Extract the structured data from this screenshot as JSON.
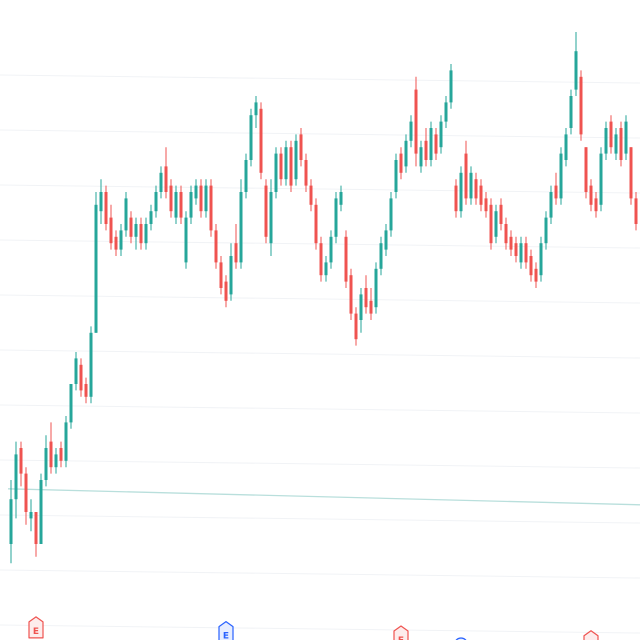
{
  "chart_data": {
    "type": "candlestick",
    "title": "",
    "xlabel": "",
    "ylabel": "",
    "ylim": [
      0,
      100
    ],
    "grid": true,
    "legend": "none",
    "reference_line": 23,
    "colors": {
      "up": "#26a69a",
      "down": "#ef5350",
      "reference_line": "#b9dfdc",
      "grid": "#f1f3f6"
    },
    "ohlc_fields": [
      "open",
      "high",
      "low",
      "close"
    ],
    "ohlc": [
      [
        15,
        25,
        12,
        22
      ],
      [
        22,
        31,
        19,
        29
      ],
      [
        30,
        31,
        24,
        26
      ],
      [
        26,
        27,
        18,
        20
      ],
      [
        19,
        22,
        17,
        20
      ],
      [
        20,
        20,
        13,
        15
      ],
      [
        15,
        26,
        15,
        25
      ],
      [
        25,
        32,
        24,
        30
      ],
      [
        31,
        34,
        26,
        27
      ],
      [
        27,
        30,
        26,
        29
      ],
      [
        30,
        31,
        27,
        28
      ],
      [
        28,
        35,
        27,
        34
      ],
      [
        34,
        40,
        33,
        40
      ],
      [
        40,
        45,
        39,
        44
      ],
      [
        43,
        44,
        38,
        39
      ],
      [
        40,
        41,
        37,
        38
      ],
      [
        38,
        49,
        37,
        48
      ],
      [
        48,
        70,
        48,
        68
      ],
      [
        67,
        72,
        65,
        70
      ],
      [
        70,
        71,
        64,
        65
      ],
      [
        66,
        68,
        61,
        62
      ],
      [
        63,
        64,
        60,
        61
      ],
      [
        61,
        65,
        60,
        64
      ],
      [
        64,
        70,
        63,
        69
      ],
      [
        66,
        67,
        62,
        63
      ],
      [
        63,
        66,
        61,
        65
      ],
      [
        65,
        66,
        61,
        62
      ],
      [
        62,
        66,
        61,
        65
      ],
      [
        65,
        68,
        64,
        67
      ],
      [
        67,
        71,
        66,
        70
      ],
      [
        70,
        74,
        69,
        73
      ],
      [
        74,
        77,
        69,
        70
      ],
      [
        71,
        72,
        66,
        67
      ],
      [
        66,
        71,
        65,
        70
      ],
      [
        70,
        71,
        65,
        66
      ],
      [
        59,
        67,
        58,
        66
      ],
      [
        66,
        71,
        65,
        70
      ],
      [
        69,
        72,
        68,
        71
      ],
      [
        71,
        72,
        66,
        67
      ],
      [
        67,
        72,
        66,
        71
      ],
      [
        71,
        72,
        63,
        64
      ],
      [
        64,
        65,
        58,
        59
      ],
      [
        59,
        60,
        54,
        55
      ],
      [
        56,
        57,
        52,
        53
      ],
      [
        54,
        62,
        53,
        60
      ],
      [
        62,
        65,
        58,
        59
      ],
      [
        59,
        72,
        58,
        70
      ],
      [
        70,
        76,
        69,
        75
      ],
      [
        75,
        83,
        74,
        82
      ],
      [
        82,
        85,
        80,
        84
      ],
      [
        83,
        84,
        72,
        73
      ],
      [
        71,
        72,
        62,
        63
      ],
      [
        62,
        72,
        60,
        70
      ],
      [
        70,
        77,
        69,
        76
      ],
      [
        76,
        77,
        71,
        72
      ],
      [
        72,
        78,
        71,
        77
      ],
      [
        77,
        78,
        70,
        71
      ],
      [
        72,
        79,
        71,
        78
      ],
      [
        79,
        80,
        74,
        75
      ],
      [
        75,
        76,
        70,
        71
      ],
      [
        71,
        72,
        67,
        68
      ],
      [
        68,
        69,
        61,
        62
      ],
      [
        62,
        63,
        56,
        57
      ],
      [
        57,
        60,
        56,
        59
      ],
      [
        59,
        64,
        58,
        63
      ],
      [
        63,
        70,
        62,
        69
      ],
      [
        68,
        71,
        67,
        70
      ],
      [
        63,
        64,
        55,
        56
      ],
      [
        57,
        58,
        50,
        51
      ],
      [
        51,
        52,
        46,
        47
      ],
      [
        50,
        55,
        48,
        54
      ],
      [
        55,
        57,
        51,
        52
      ],
      [
        53,
        55,
        50,
        51
      ],
      [
        52,
        59,
        51,
        58
      ],
      [
        58,
        63,
        57,
        62
      ],
      [
        61,
        65,
        60,
        64
      ],
      [
        64,
        70,
        63,
        69
      ],
      [
        70,
        76,
        69,
        75
      ],
      [
        76,
        77,
        72,
        73
      ],
      [
        74,
        79,
        73,
        78
      ],
      [
        78,
        82,
        77,
        81
      ],
      [
        86,
        88,
        74,
        76
      ],
      [
        74,
        78,
        73,
        77
      ],
      [
        78,
        80,
        74,
        75
      ],
      [
        75,
        81,
        74,
        80
      ],
      [
        79,
        80,
        75,
        76
      ],
      [
        77,
        82,
        76,
        81
      ],
      [
        81,
        85,
        80,
        84
      ],
      [
        84,
        90,
        83,
        89
      ],
      [
        71,
        72,
        66,
        67
      ],
      [
        67,
        74,
        66,
        73
      ],
      [
        76,
        78,
        68,
        69
      ],
      [
        69,
        74,
        68,
        73
      ],
      [
        72,
        73,
        68,
        69
      ],
      [
        71,
        72,
        67,
        68
      ],
      [
        69,
        70,
        66,
        67
      ],
      [
        68,
        69,
        61,
        62
      ],
      [
        63,
        68,
        62,
        67
      ],
      [
        68,
        69,
        64,
        65
      ],
      [
        65,
        66,
        61,
        62
      ],
      [
        63,
        64,
        60,
        61
      ],
      [
        62,
        63,
        59,
        60
      ],
      [
        59,
        63,
        58,
        62
      ],
      [
        62,
        63,
        58,
        59
      ],
      [
        60,
        61,
        56,
        57
      ],
      [
        58,
        59,
        55,
        56
      ],
      [
        57,
        63,
        56,
        62
      ],
      [
        62,
        67,
        61,
        66
      ],
      [
        66,
        71,
        65,
        70
      ],
      [
        71,
        73,
        68,
        69
      ],
      [
        69,
        77,
        68,
        76
      ],
      [
        75,
        80,
        74,
        79
      ],
      [
        80,
        86,
        79,
        85
      ],
      [
        86,
        95,
        85,
        92
      ],
      [
        88,
        89,
        78,
        79
      ],
      [
        77,
        77,
        69,
        70
      ],
      [
        71,
        72,
        67,
        68
      ],
      [
        69,
        70,
        66,
        67
      ],
      [
        68,
        77,
        67,
        76
      ],
      [
        76,
        81,
        75,
        80
      ],
      [
        81,
        82,
        76,
        77
      ],
      [
        76,
        80,
        75,
        79
      ],
      [
        80,
        81,
        74,
        75
      ],
      [
        76,
        82,
        75,
        81
      ],
      [
        77,
        77,
        68,
        69
      ],
      [
        69,
        70,
        64,
        65
      ]
    ],
    "events": [
      {
        "index": 5,
        "label": "E",
        "shape": "flag",
        "color": "#ef5350",
        "fill": "#fdecec"
      },
      {
        "index": 43,
        "label": "E",
        "shape": "flag",
        "color": "#2962ff",
        "fill": "#e6edff"
      },
      {
        "index": 78,
        "label": "E",
        "shape": "flag",
        "color": "#ef5350",
        "fill": "#fdecec"
      },
      {
        "index": 90,
        "label": "D",
        "shape": "circle",
        "color": "#2962ff",
        "fill": "#e6edff"
      },
      {
        "index": 116,
        "label": "",
        "shape": "flag",
        "color": "#ef5350",
        "fill": "#fdecec"
      }
    ]
  }
}
